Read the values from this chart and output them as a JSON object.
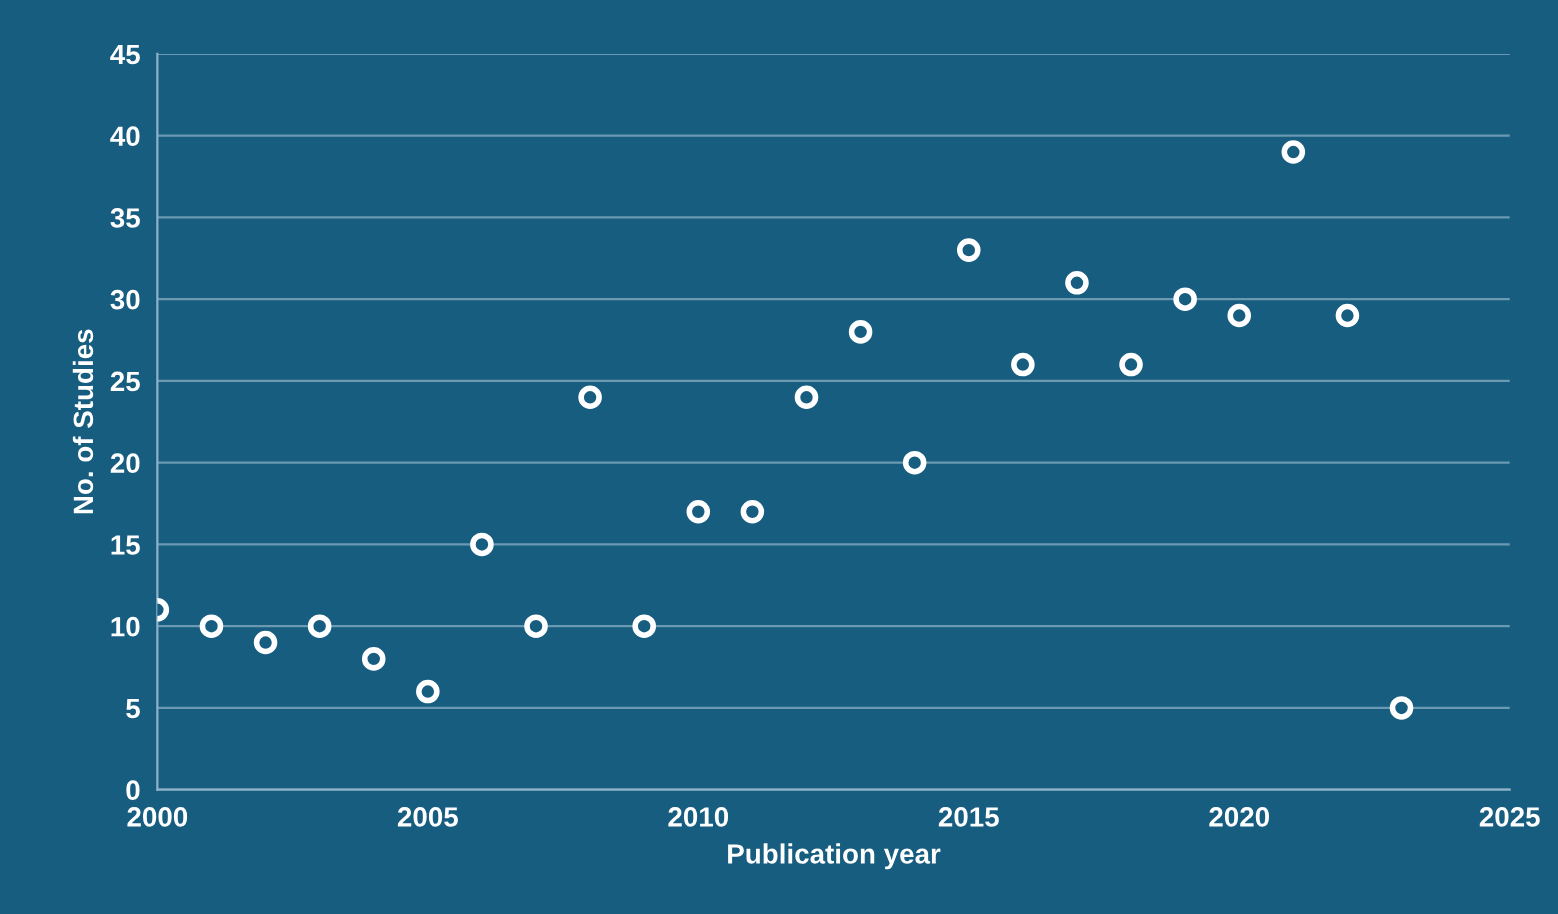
{
  "chart_data": {
    "type": "scatter",
    "xlabel": "Publication year",
    "ylabel": "No. of Studies",
    "x": [
      2000,
      2001,
      2002,
      2003,
      2004,
      2005,
      2006,
      2007,
      2008,
      2009,
      2010,
      2011,
      2012,
      2013,
      2014,
      2015,
      2016,
      2017,
      2018,
      2019,
      2020,
      2021,
      2022,
      2023
    ],
    "series": [
      {
        "color": "#ffffff",
        "values": [
          11,
          10,
          9,
          10,
          8,
          6,
          15,
          10,
          24,
          10,
          17,
          17,
          24,
          28,
          20,
          33,
          26,
          31,
          26,
          30,
          29,
          39,
          29,
          5
        ]
      }
    ],
    "xlim": [
      2000,
      2025
    ],
    "xticks": [
      2000,
      2005,
      2010,
      2015,
      2020,
      2025
    ],
    "ylim": [
      0,
      45
    ],
    "yticks": [
      0,
      5,
      10,
      15,
      20,
      25,
      30,
      35,
      40,
      45
    ],
    "grid": "y",
    "marker": "circle"
  }
}
